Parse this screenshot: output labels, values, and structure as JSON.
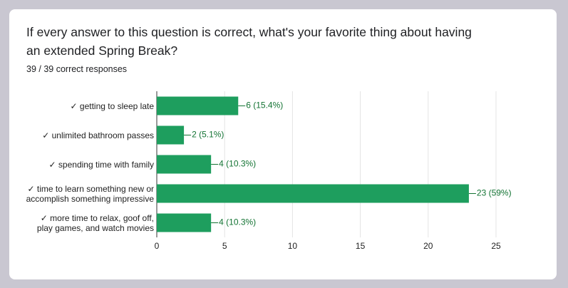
{
  "chart_data": {
    "type": "barh",
    "title": "If every answer to this question is correct, what's your favorite thing about having an extended Spring Break?",
    "subtitle": "39 / 39 correct responses",
    "categories": [
      "✓ getting to sleep late",
      "✓ unlimited bathroom passes",
      "✓ spending time with family",
      "✓ time to learn something new or\naccomplish something impressive",
      "✓ more time to relax, goof off,\nplay games, and watch movies"
    ],
    "values": [
      6,
      2,
      4,
      23,
      4
    ],
    "value_labels": [
      "6 (15.4%)",
      "2 (5.1%)",
      "4 (10.3%)",
      "23 (59%)",
      "4 (10.3%)"
    ],
    "color": "#1e9e5e",
    "xlim": [
      0,
      25
    ],
    "xticks": [
      0,
      5,
      10,
      15,
      20,
      25
    ],
    "grid": true
  }
}
